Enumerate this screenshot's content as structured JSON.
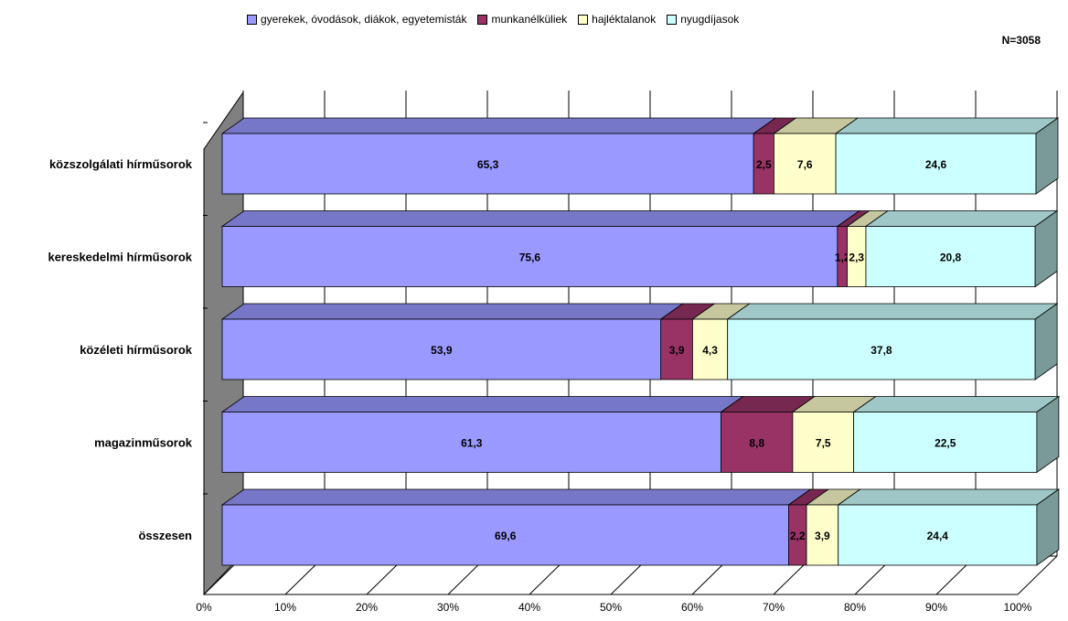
{
  "title": "",
  "legend": [
    {
      "name": "gyerekek, óvodások, diákok, egyetemisták",
      "color": "#9999ff"
    },
    {
      "name": "munkanélküliek",
      "color": "#993366"
    },
    {
      "name": "hajléktalanok",
      "color": "#ffffcc"
    },
    {
      "name": "nyugdíjasok",
      "color": "#ccffff"
    }
  ],
  "n_label": "N=3058",
  "chart_data": {
    "type": "bar",
    "orientation": "horizontal-stacked-100",
    "categories": [
      "közszolgálati hírműsorok",
      "kereskedelmi hírműsorok",
      "közéleti hírműsorok",
      "magazinműsorok",
      "összesen"
    ],
    "series": [
      {
        "name": "gyerekek, óvodások, diákok, egyetemisták",
        "color": "#9999ff",
        "values": [
          65.3,
          75.6,
          53.9,
          61.3,
          69.6
        ],
        "labels": [
          "65,3",
          "75,6",
          "53,9",
          "61,3",
          "69,6"
        ]
      },
      {
        "name": "munkanélküliek",
        "color": "#993366",
        "values": [
          2.5,
          1.2,
          3.9,
          8.8,
          2.2
        ],
        "labels": [
          "2,5",
          "1,2",
          "3,9",
          "8,8",
          "2,2"
        ]
      },
      {
        "name": "hajléktalanok",
        "color": "#ffffcc",
        "values": [
          7.6,
          2.3,
          4.3,
          7.5,
          3.9
        ],
        "labels": [
          "7,6",
          "2,3",
          "4,3",
          "7,5",
          "3,9"
        ]
      },
      {
        "name": "nyugdíjasok",
        "color": "#ccffff",
        "values": [
          24.6,
          20.8,
          37.8,
          22.5,
          24.4
        ],
        "labels": [
          "24,6",
          "20,8",
          "37,8",
          "22,5",
          "24,4"
        ]
      }
    ],
    "xtick_labels": [
      "0%",
      "10%",
      "20%",
      "30%",
      "40%",
      "50%",
      "60%",
      "70%",
      "80%",
      "90%",
      "100%"
    ],
    "xlim": [
      0,
      100
    ],
    "grid": true,
    "legend_position": "top",
    "three_d": true
  }
}
